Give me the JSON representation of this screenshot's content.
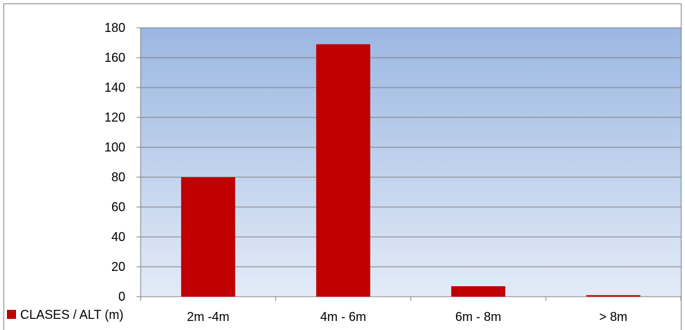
{
  "chart_data": {
    "type": "bar",
    "title": "",
    "xlabel": "",
    "ylabel": "",
    "categories": [
      "2m -4m",
      "4m - 6m",
      "6m - 8m",
      "> 8m"
    ],
    "series": [
      {
        "name": "CLASES / ALT (m)",
        "values": [
          80,
          169,
          7,
          1
        ],
        "color": "#c00000"
      }
    ],
    "ylim": [
      0,
      180
    ],
    "yticks": [
      0,
      20,
      40,
      60,
      80,
      100,
      120,
      140,
      160,
      180
    ],
    "grid": true,
    "legend_position": "bottom-left",
    "plot_background": {
      "top": "#9bb7e2",
      "bottom": "#e3ebf7"
    }
  }
}
